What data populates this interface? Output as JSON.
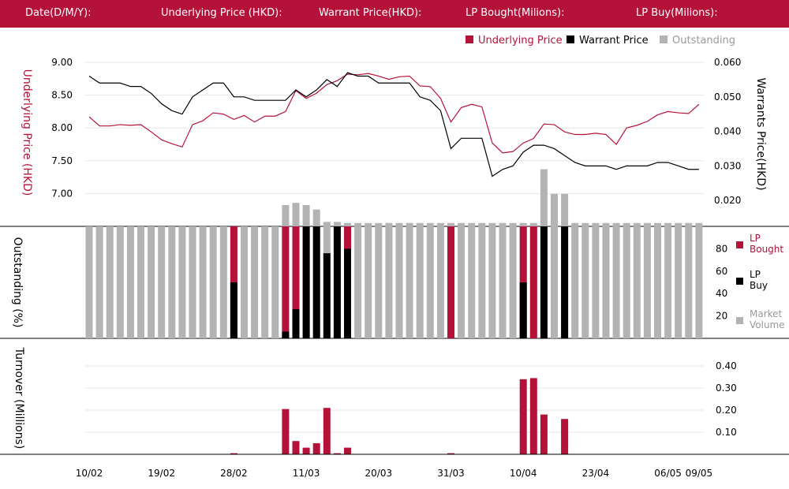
{
  "header": {
    "date_label": "Date(D/M/Y):",
    "underlying_label": "Underlying Price (HKD):",
    "warrant_label": "Warrant  Price(HKD):",
    "lp_bought_label": "LP Bought(Milions):",
    "lp_buy_label": "LP Buy(Milions):"
  },
  "colors": {
    "red": "#b5123a",
    "black": "#000000",
    "gray": "#b3b3b3",
    "header_bg": "#b5123a"
  },
  "chart_data": {
    "type": "composite",
    "x_ticks": [
      "10/02",
      "19/02",
      "28/02",
      "11/03",
      "20/03",
      "31/03",
      "10/04",
      "23/04",
      "06/05",
      "09/05"
    ],
    "x_tick_index": [
      0,
      7,
      14,
      21,
      28,
      35,
      42,
      49,
      56,
      59
    ],
    "price_panel": {
      "legend": [
        "Underlying Price",
        "Warrant  Price",
        "Outstanding"
      ],
      "left_axis_label": "Underlying Price (HKD)",
      "right_axis_label": "Warrants  Price(HKD)",
      "left_ticks": [
        "9.00",
        "8.50",
        "8.00",
        "7.50",
        "7.00"
      ],
      "right_ticks": [
        "0.060",
        "0.050",
        "0.040",
        "0.030",
        "0.020"
      ],
      "left_range": [
        6.5,
        9.0
      ],
      "right_range": [
        0.0125,
        0.06
      ],
      "underlying": [
        8.17,
        8.03,
        8.03,
        8.05,
        8.04,
        8.05,
        7.94,
        7.82,
        7.76,
        7.71,
        8.05,
        8.11,
        8.23,
        8.21,
        8.13,
        8.19,
        8.09,
        8.18,
        8.18,
        8.25,
        8.57,
        8.45,
        8.53,
        8.66,
        8.72,
        8.82,
        8.81,
        8.83,
        8.79,
        8.74,
        8.78,
        8.79,
        8.64,
        8.63,
        8.45,
        8.09,
        8.31,
        8.36,
        8.32,
        7.77,
        7.62,
        7.64,
        7.77,
        7.84,
        8.06,
        8.05,
        7.94,
        7.9,
        7.9,
        7.92,
        7.9,
        7.75,
        8.0,
        8.04,
        8.1,
        8.2,
        8.25,
        8.23,
        8.22,
        8.36
      ],
      "warrant": [
        0.056,
        0.054,
        0.054,
        0.054,
        0.053,
        0.053,
        0.051,
        0.048,
        0.046,
        0.045,
        0.05,
        0.052,
        0.054,
        0.054,
        0.05,
        0.05,
        0.049,
        0.049,
        0.049,
        0.049,
        0.052,
        0.05,
        0.052,
        0.055,
        0.053,
        0.057,
        0.056,
        0.056,
        0.054,
        0.054,
        0.054,
        0.054,
        0.05,
        0.049,
        0.046,
        0.035,
        0.038,
        0.038,
        0.038,
        0.027,
        0.029,
        0.03,
        0.034,
        0.036,
        0.036,
        0.035,
        0.033,
        0.031,
        0.03,
        0.03,
        0.03,
        0.029,
        0.03,
        0.03,
        0.03,
        0.031,
        0.031,
        0.03,
        0.029,
        0.029
      ],
      "outstanding_above": [
        0,
        0,
        0,
        0,
        0,
        0,
        0,
        0,
        0,
        0,
        0,
        0,
        0,
        0,
        0,
        0,
        0,
        0,
        0,
        0,
        0,
        0,
        0,
        0,
        0,
        0,
        0,
        0,
        0,
        0,
        0,
        0,
        0,
        0,
        0,
        0,
        0,
        0,
        0,
        0,
        0,
        0,
        0,
        0,
        0,
        0,
        0,
        0,
        0,
        0,
        0,
        0,
        0,
        0,
        0,
        0,
        0,
        0,
        0,
        0
      ]
    },
    "outstanding_panel": {
      "ylabel": "Outstanding (%)",
      "ticks": [
        "80",
        "60",
        "40",
        "20"
      ],
      "range": [
        0,
        100
      ],
      "legend": [
        "LP Bought",
        "LP Buy",
        "Market Volume"
      ],
      "outstanding": [
        100,
        100,
        100,
        100,
        100,
        100,
        100,
        100,
        100,
        100,
        100,
        100,
        100,
        100,
        100,
        100,
        100,
        100,
        100,
        119,
        121,
        119,
        115,
        104,
        104,
        103,
        103,
        103,
        103,
        103,
        103,
        103,
        103,
        103,
        103,
        103,
        103,
        103,
        103,
        103,
        103,
        103,
        103,
        103,
        151,
        129,
        129,
        103,
        103,
        103,
        103,
        103,
        103,
        103,
        103,
        103,
        103,
        103,
        103,
        103
      ],
      "lp_bought": [
        0,
        0,
        0,
        0,
        0,
        0,
        0,
        0,
        0,
        0,
        0,
        0,
        0,
        0,
        100,
        0,
        0,
        0,
        0,
        100,
        100,
        0,
        0,
        0,
        0,
        100,
        0,
        0,
        0,
        0,
        0,
        0,
        0,
        0,
        0,
        100,
        0,
        0,
        0,
        0,
        0,
        0,
        100,
        100,
        0,
        0,
        0,
        0,
        0,
        0,
        0,
        0,
        0,
        0,
        0,
        0,
        0,
        0,
        0,
        0
      ],
      "lp_buy": [
        0,
        0,
        0,
        0,
        0,
        0,
        0,
        0,
        0,
        0,
        0,
        0,
        0,
        0,
        50,
        0,
        0,
        0,
        0,
        6,
        26,
        100,
        100,
        76,
        100,
        80,
        0,
        0,
        0,
        0,
        0,
        0,
        0,
        0,
        0,
        0,
        0,
        0,
        0,
        0,
        0,
        0,
        50,
        0,
        100,
        0,
        100,
        0,
        0,
        0,
        0,
        0,
        0,
        0,
        0,
        0,
        0,
        0,
        0,
        0
      ]
    },
    "turnover_panel": {
      "ylabel": "Turnover (Millions)",
      "ticks": [
        "0.40",
        "0.30",
        "0.20",
        "0.10"
      ],
      "range": [
        0,
        0.45
      ],
      "values": [
        0,
        0,
        0,
        0,
        0,
        0,
        0,
        0,
        0,
        0,
        0,
        0,
        0,
        0,
        0.005,
        0,
        0,
        0,
        0,
        0.205,
        0.06,
        0.03,
        0.05,
        0.21,
        0.005,
        0.03,
        0,
        0,
        0,
        0,
        0,
        0,
        0,
        0,
        0,
        0.005,
        0,
        0,
        0,
        0,
        0,
        0,
        0.34,
        0.345,
        0.18,
        0,
        0.16,
        0,
        0,
        0,
        0,
        0,
        0,
        0,
        0,
        0,
        0,
        0,
        0,
        0
      ]
    }
  }
}
